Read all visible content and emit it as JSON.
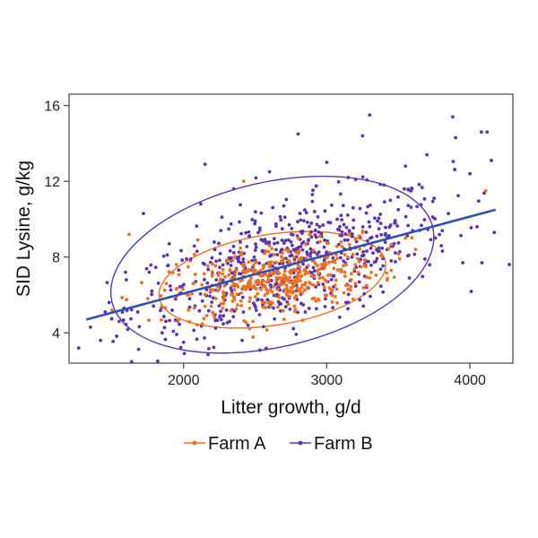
{
  "chart_data": {
    "type": "scatter",
    "title": "",
    "xlabel": "Litter growth, g/d",
    "ylabel": "SID Lysine, g/kg",
    "xlim": [
      1200,
      4300
    ],
    "ylim": [
      2.4,
      16.6
    ],
    "xticks": [
      2000,
      3000,
      4000
    ],
    "yticks": [
      4,
      8,
      12,
      16
    ],
    "grid": false,
    "legend_position": "bottom-center",
    "colors": {
      "farm_a": "#f07020",
      "farm_b": "#5a35b0",
      "fit_line": "#3050b8"
    },
    "series": [
      {
        "name": "Farm A",
        "color": "#f07020",
        "center": [
          2650,
          6.8
        ],
        "points": [
          [
            1500,
            5.2
          ],
          [
            1620,
            9.2
          ],
          [
            1750,
            5.8
          ],
          [
            1880,
            6.6
          ],
          [
            1950,
            7.6
          ],
          [
            2030,
            6.0
          ],
          [
            2100,
            8.9
          ],
          [
            2150,
            5.4
          ],
          [
            2200,
            7.0
          ],
          [
            2250,
            6.3
          ],
          [
            2300,
            7.8
          ],
          [
            2350,
            5.9
          ],
          [
            2400,
            8.2
          ],
          [
            2420,
            12.0
          ],
          [
            2450,
            6.6
          ],
          [
            2500,
            7.3
          ],
          [
            2550,
            5.6
          ],
          [
            2600,
            8.6
          ],
          [
            2650,
            6.9
          ],
          [
            2700,
            7.5
          ],
          [
            2750,
            6.2
          ],
          [
            2800,
            9.0
          ],
          [
            2850,
            7.1
          ],
          [
            2900,
            5.8
          ],
          [
            2950,
            8.0
          ],
          [
            3000,
            6.7
          ],
          [
            3050,
            7.4
          ],
          [
            3100,
            8.8
          ],
          [
            3150,
            6.3
          ],
          [
            3200,
            7.6
          ],
          [
            3250,
            9.3
          ],
          [
            3300,
            6.9
          ],
          [
            3380,
            8.1
          ],
          [
            3450,
            7.3
          ],
          [
            3550,
            9.0
          ],
          [
            3620,
            8.4
          ],
          [
            4110,
            11.5
          ]
        ]
      },
      {
        "name": "Farm B",
        "color": "#5a35b0",
        "center": [
          2750,
          7.9
        ],
        "points": [
          [
            1350,
            4.3
          ],
          [
            1420,
            3.6
          ],
          [
            1480,
            5.6
          ],
          [
            1550,
            4.6
          ],
          [
            1600,
            6.8
          ],
          [
            1680,
            5.1
          ],
          [
            1720,
            10.3
          ],
          [
            1760,
            7.2
          ],
          [
            1850,
            4.0
          ],
          [
            1900,
            8.7
          ],
          [
            1980,
            6.1
          ],
          [
            2000,
            3.5
          ],
          [
            2050,
            7.9
          ],
          [
            2120,
            10.8
          ],
          [
            2150,
            12.9
          ],
          [
            2200,
            6.5
          ],
          [
            2260,
            9.4
          ],
          [
            2300,
            5.2
          ],
          [
            2350,
            11.6
          ],
          [
            2400,
            7.7
          ],
          [
            2450,
            4.4
          ],
          [
            2500,
            9.9
          ],
          [
            2550,
            8.3
          ],
          [
            2600,
            12.5
          ],
          [
            2650,
            6.0
          ],
          [
            2700,
            10.7
          ],
          [
            2750,
            8.8
          ],
          [
            2800,
            14.5
          ],
          [
            2850,
            5.1
          ],
          [
            2900,
            11.3
          ],
          [
            2950,
            9.6
          ],
          [
            3000,
            13.0
          ],
          [
            3050,
            7.0
          ],
          [
            3100,
            10.2
          ],
          [
            3150,
            12.2
          ],
          [
            3200,
            8.5
          ],
          [
            3250,
            14.4
          ],
          [
            3300,
            15.5
          ],
          [
            3350,
            9.1
          ],
          [
            3400,
            11.8
          ],
          [
            3450,
            7.8
          ],
          [
            3500,
            10.5
          ],
          [
            3550,
            12.8
          ],
          [
            3600,
            9.4
          ],
          [
            3700,
            13.4
          ],
          [
            3750,
            11.1
          ],
          [
            3800,
            8.6
          ],
          [
            3850,
            10.3
          ],
          [
            3880,
            15.4
          ],
          [
            3900,
            14.3
          ],
          [
            3950,
            7.7
          ],
          [
            4000,
            12.4
          ],
          [
            4050,
            9.6
          ],
          [
            4080,
            14.6
          ],
          [
            4120,
            14.6
          ],
          [
            4150,
            13.1
          ],
          [
            4170,
            9.3
          ]
        ]
      }
    ],
    "fit_line": {
      "x": [
        1320,
        4180
      ],
      "y": [
        4.7,
        10.5
      ]
    },
    "ellipses": [
      {
        "series": "Farm A",
        "center": [
          2620,
          6.8
        ],
        "x_range": [
          1850,
          3450
        ],
        "y_range": [
          4.4,
          9.2
        ]
      },
      {
        "series": "Farm B",
        "center": [
          2620,
          7.6
        ],
        "x_range": [
          1500,
          3800
        ],
        "y_range": [
          3.5,
          12.2
        ]
      }
    ]
  }
}
